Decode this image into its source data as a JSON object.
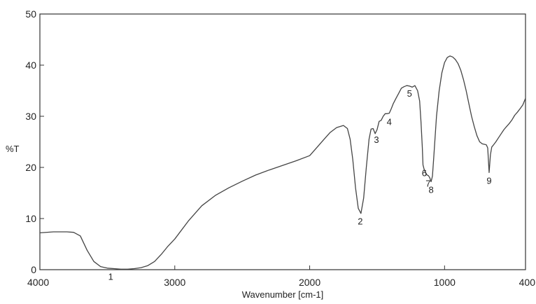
{
  "chart_data": {
    "type": "line",
    "title": "",
    "xlabel": "Wavenumber [cm-1]",
    "ylabel": "%T",
    "xlim": [
      4000,
      400
    ],
    "ylim": [
      0,
      50
    ],
    "x_reversed": true,
    "grid": false,
    "x_ticks": [
      4000,
      3000,
      2000,
      1000,
      400
    ],
    "y_ticks": [
      0,
      10,
      20,
      30,
      40,
      50
    ],
    "series": [
      {
        "x": [
          4000,
          3900,
          3800,
          3750,
          3700,
          3650,
          3600,
          3550,
          3500,
          3450,
          3400,
          3350,
          3300,
          3250,
          3200,
          3150,
          3100,
          3050,
          3000,
          2900,
          2800,
          2700,
          2600,
          2500,
          2400,
          2300,
          2200,
          2100,
          2000,
          1950,
          1900,
          1850,
          1800,
          1750,
          1720,
          1700,
          1680,
          1660,
          1640,
          1620,
          1600,
          1580,
          1560,
          1545,
          1530,
          1515,
          1500,
          1485,
          1470,
          1455,
          1440,
          1425,
          1410,
          1395,
          1380,
          1360,
          1340,
          1320,
          1300,
          1280,
          1260,
          1240,
          1220,
          1200,
          1185,
          1175,
          1165,
          1160,
          1150,
          1140,
          1130,
          1120,
          1110,
          1100,
          1090,
          1080,
          1060,
          1040,
          1020,
          1000,
          980,
          960,
          940,
          920,
          900,
          880,
          860,
          840,
          820,
          800,
          780,
          760,
          740,
          720,
          700,
          690,
          680,
          670,
          660,
          650,
          640,
          620,
          600,
          580,
          560,
          540,
          520,
          500,
          480,
          460,
          440,
          420,
          400
        ],
        "values": [
          7.2,
          7.4,
          7.4,
          7.3,
          6.6,
          3.8,
          1.6,
          0.6,
          0.3,
          0.2,
          0.1,
          0.1,
          0.2,
          0.4,
          0.8,
          1.6,
          3.0,
          4.6,
          6.0,
          9.5,
          12.5,
          14.5,
          16.0,
          17.3,
          18.5,
          19.5,
          20.4,
          21.3,
          22.3,
          23.8,
          25.3,
          26.8,
          27.8,
          28.2,
          27.6,
          25.5,
          21.5,
          16.0,
          12.0,
          11.0,
          14.0,
          20.0,
          25.5,
          27.5,
          27.6,
          26.6,
          27.4,
          29.0,
          29.2,
          30.0,
          30.5,
          30.5,
          30.6,
          31.5,
          32.5,
          33.5,
          34.5,
          35.5,
          35.8,
          36.0,
          35.9,
          35.7,
          36.0,
          35.0,
          33.0,
          29.0,
          24.0,
          20.5,
          19.5,
          19.0,
          18.5,
          18.4,
          18.0,
          17.2,
          18.3,
          22.0,
          30.0,
          35.0,
          38.5,
          40.5,
          41.5,
          41.8,
          41.6,
          41.1,
          40.3,
          39.0,
          37.2,
          35.0,
          32.5,
          30.0,
          28.0,
          26.2,
          25.0,
          24.6,
          24.5,
          24.4,
          23.8,
          19.0,
          22.5,
          24.0,
          24.3,
          25.0,
          25.8,
          26.6,
          27.4,
          28.0,
          28.6,
          29.3,
          30.2,
          30.8,
          31.5,
          32.2,
          33.5
        ]
      }
    ],
    "peak_labels": [
      {
        "label": "1",
        "x": 3475,
        "y": 0.2
      },
      {
        "label": "2",
        "x": 1625,
        "y": 11.0
      },
      {
        "label": "3",
        "x": 1505,
        "y": 27.0
      },
      {
        "label": "4",
        "x": 1410,
        "y": 30.5
      },
      {
        "label": "5",
        "x": 1260,
        "y": 36.0
      },
      {
        "label": "6",
        "x": 1150,
        "y": 20.5
      },
      {
        "label": "7",
        "x": 1122,
        "y": 18.4
      },
      {
        "label": "8",
        "x": 1100,
        "y": 17.2
      },
      {
        "label": "9",
        "x": 670,
        "y": 19.0
      }
    ]
  }
}
